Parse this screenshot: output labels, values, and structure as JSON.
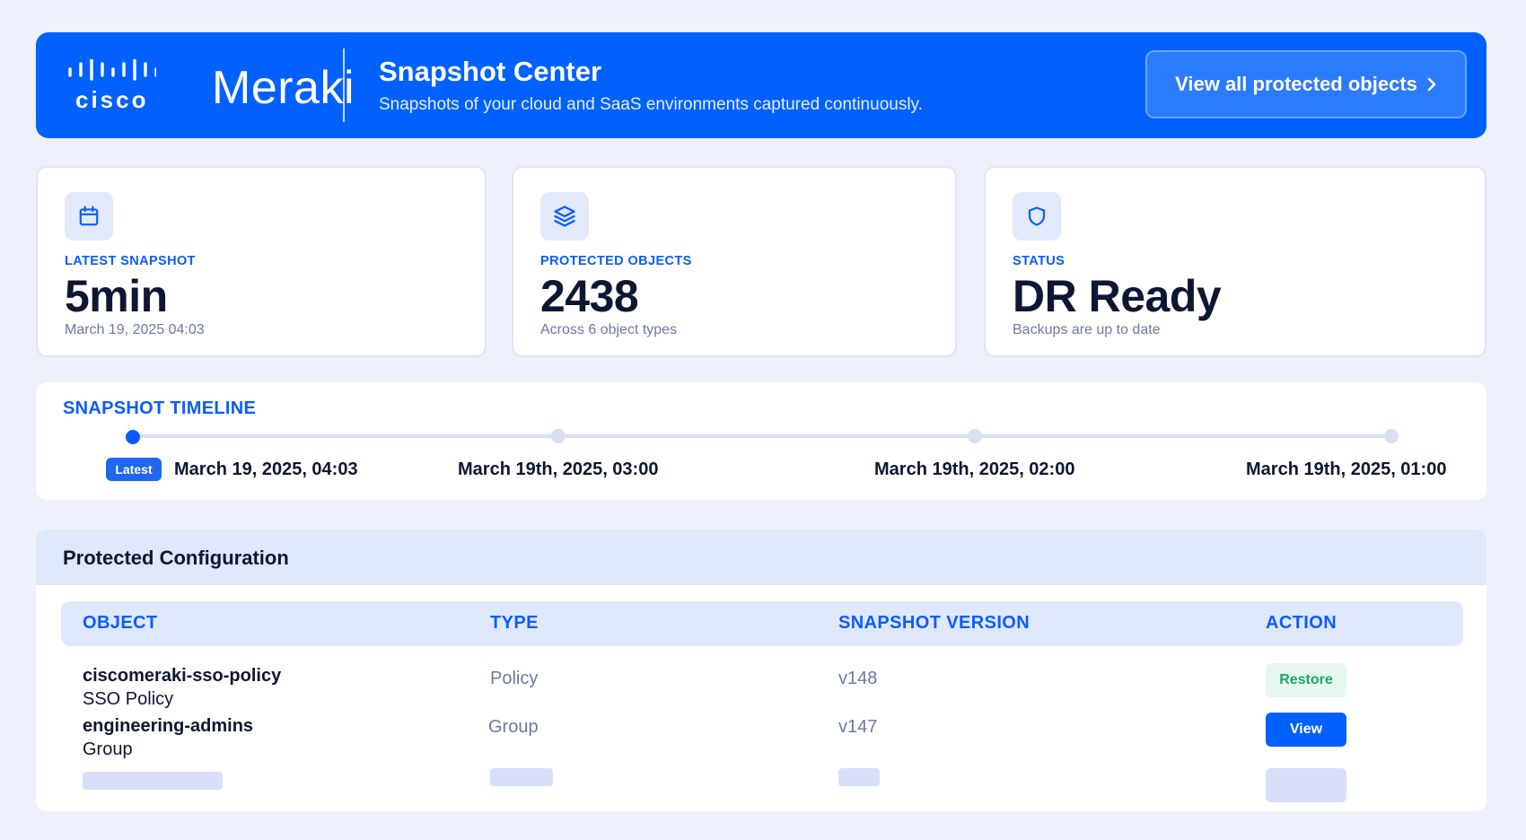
{
  "header": {
    "logo_cisco": "cisco",
    "logo_meraki": "Meraki",
    "title": "Snapshot Center",
    "subtitle": "Snapshots of your cloud and SaaS environments captured continuously.",
    "button_label": "View all protected objects",
    "button_icon": "chevron-right-icon"
  },
  "stats": [
    {
      "icon": "calendar-icon",
      "label": "LATEST SNAPSHOT",
      "value": "5min",
      "sub": "March 19, 2025 04:03"
    },
    {
      "icon": "layers-icon",
      "label": "PROTECTED OBJECTS",
      "value": "2438",
      "sub": "Across 6 object types"
    },
    {
      "icon": "shield-icon",
      "label": "STATUS",
      "value": "DR Ready",
      "sub": "Backups are up to date"
    }
  ],
  "timeline": {
    "title": "SNAPSHOT TIMELINE",
    "badge": "Latest",
    "points": [
      {
        "label": "March 19, 2025, 04:03"
      },
      {
        "label": "March 19th, 2025, 03:00"
      },
      {
        "label": "March 19th, 2025, 02:00"
      },
      {
        "label": "March 19th, 2025, 01:00"
      }
    ]
  },
  "config": {
    "title": "Protected Configuration",
    "columns": [
      "OBJECT",
      "TYPE",
      "SNAPSHOT VERSION",
      "ACTION"
    ],
    "rows": [
      {
        "name": "ciscomeraki-sso-policy",
        "sub": "SSO Policy",
        "type": "Policy",
        "version": "v148",
        "action": "Restore"
      },
      {
        "name": "engineering-admins",
        "sub": "Group",
        "type": "Group",
        "version": "v147",
        "action": "View"
      }
    ]
  },
  "colors": {
    "brand": "#0061ff",
    "accent_text": "#0a5cff",
    "success": "#1aa86c",
    "background": "#eef1fb"
  }
}
